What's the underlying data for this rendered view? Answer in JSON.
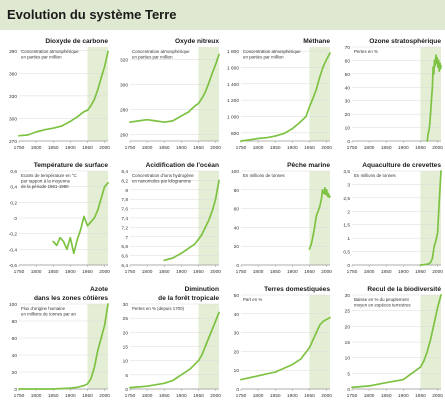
{
  "title": "Evolution du système Terre",
  "style": {
    "line_color": "#7dc242",
    "shade_color": "#e4eed5",
    "grid_color": "#d9d9d9",
    "axis_color": "#9a9a9a",
    "title_bar_color": "#dfe8d0"
  },
  "chart_data": [
    {
      "type": "line",
      "title": "Dioxyde de carbone",
      "note": "Concentration atmosphérique\nen parties par million",
      "x": [
        1750,
        1775,
        1800,
        1825,
        1850,
        1875,
        1900,
        1920,
        1940,
        1950,
        1960,
        1970,
        1980,
        1990,
        2000,
        2010
      ],
      "values": [
        277,
        278,
        282,
        285,
        287,
        290,
        296,
        302,
        309,
        311,
        317,
        325,
        338,
        354,
        369,
        389
      ],
      "xlim": [
        1750,
        2010
      ],
      "ylim": [
        270,
        395
      ],
      "yticks": [
        270,
        300,
        330,
        360,
        390
      ],
      "yticklabels": [
        "270",
        "300",
        "330",
        "360",
        "390"
      ],
      "xticks": [
        1750,
        1800,
        1850,
        1900,
        1950,
        2000
      ],
      "xticklabels": [
        "1750",
        "1800",
        "1850",
        "1900",
        "1950",
        "2000"
      ],
      "shade_from": 1950
    },
    {
      "type": "line",
      "title": "Oxyde nitreux",
      "note": "Concentration atmosphérique\nen parties par million",
      "x": [
        1750,
        1775,
        1800,
        1825,
        1850,
        1875,
        1900,
        1920,
        1940,
        1950,
        1960,
        1970,
        1980,
        1990,
        2000,
        2010
      ],
      "values": [
        270,
        271,
        272,
        271,
        270,
        271,
        275,
        278,
        283,
        285,
        289,
        294,
        301,
        309,
        316,
        324
      ],
      "xlim": [
        1750,
        2010
      ],
      "ylim": [
        255,
        330
      ],
      "yticks": [
        260,
        280,
        300,
        320
      ],
      "yticklabels": [
        "260",
        "280",
        "300",
        "320"
      ],
      "xticks": [
        1750,
        1800,
        1850,
        1900,
        1950,
        2000
      ],
      "xticklabels": [
        "1750",
        "1800",
        "1850",
        "1900",
        "1950",
        "2000"
      ],
      "shade_from": 1950
    },
    {
      "type": "line",
      "title": "Méthane",
      "note": "Concentration atmosphérique\nen parties par million",
      "x": [
        1750,
        1775,
        1800,
        1825,
        1850,
        1875,
        1900,
        1920,
        1940,
        1950,
        1960,
        1970,
        1980,
        1990,
        2000,
        2010
      ],
      "values": [
        700,
        715,
        730,
        740,
        760,
        790,
        850,
        920,
        1000,
        1120,
        1220,
        1330,
        1480,
        1610,
        1700,
        1775
      ],
      "xlim": [
        1750,
        2010
      ],
      "ylim": [
        700,
        1850
      ],
      "yticks": [
        800,
        1000,
        1200,
        1400,
        1600,
        1800
      ],
      "yticklabels": [
        "800",
        "1 000",
        "1 200",
        "1 400",
        "1 600",
        "1 800"
      ],
      "xticks": [
        1750,
        1800,
        1850,
        1900,
        1950,
        2000
      ],
      "xticklabels": [
        "1750",
        "1800",
        "1850",
        "1900",
        "1950",
        "2000"
      ],
      "shade_from": 1950
    },
    {
      "type": "line",
      "title": "Ozone stratosphérique",
      "note": "Pertes en %",
      "x": [
        1970,
        1972,
        1975,
        1977,
        1980,
        1982,
        1985,
        1987,
        1989,
        1991,
        1993,
        1995,
        1997,
        1999,
        2001,
        2003,
        2005,
        2007,
        2009,
        2010
      ],
      "values": [
        0,
        5,
        8,
        12,
        22,
        30,
        40,
        55,
        50,
        60,
        56,
        64,
        58,
        62,
        55,
        60,
        52,
        58,
        54,
        56
      ],
      "xlim": [
        1750,
        2010
      ],
      "ylim": [
        0,
        70
      ],
      "yticks": [
        0,
        10,
        20,
        30,
        40,
        50,
        60,
        70
      ],
      "yticklabels": [
        "0",
        "10",
        "20",
        "30",
        "40",
        "50",
        "60",
        "70"
      ],
      "xticks": [
        1750,
        1800,
        1850,
        1900,
        1950,
        2000
      ],
      "xticklabels": [
        "1750",
        "1800",
        "1850",
        "1900",
        "1950",
        "2000"
      ],
      "shade_from": 1950
    },
    {
      "type": "line",
      "title": "Température de surface",
      "note": "Ecarts de température en °C\npar rapport à la moyenne\nde la période 1961-1990",
      "x": [
        1850,
        1860,
        1870,
        1880,
        1890,
        1900,
        1910,
        1920,
        1930,
        1940,
        1950,
        1960,
        1970,
        1980,
        1990,
        2000,
        2010
      ],
      "values": [
        -0.3,
        -0.35,
        -0.25,
        -0.3,
        -0.4,
        -0.25,
        -0.45,
        -0.28,
        -0.15,
        0.02,
        -0.1,
        -0.05,
        0,
        0.1,
        0.25,
        0.4,
        0.45
      ],
      "xlim": [
        1750,
        2010
      ],
      "ylim": [
        -0.6,
        0.6
      ],
      "yticks": [
        -0.6,
        -0.4,
        -0.2,
        0,
        0.2,
        0.4,
        0.6
      ],
      "yticklabels": [
        "-0,6",
        "-0,4",
        "-0,2",
        "0",
        "0,2",
        "0,4",
        "0,6"
      ],
      "xticks": [
        1750,
        1800,
        1850,
        1900,
        1950,
        2000
      ],
      "xticklabels": [
        "1750",
        "1800",
        "1850",
        "1900",
        "1950",
        "2000"
      ],
      "shade_from": 1950
    },
    {
      "type": "line",
      "title": "Acidification de l'océan",
      "note": "Concentration d'ions hydrogène\nen nanomoles par kilogramme",
      "x": [
        1850,
        1875,
        1900,
        1920,
        1940,
        1950,
        1960,
        1970,
        1980,
        1990,
        2000,
        2010
      ],
      "values": [
        6.5,
        6.55,
        6.65,
        6.75,
        6.85,
        6.95,
        7.05,
        7.2,
        7.35,
        7.55,
        7.8,
        8.2
      ],
      "xlim": [
        1750,
        2010
      ],
      "ylim": [
        6.4,
        8.4
      ],
      "yticks": [
        6.4,
        6.6,
        6.8,
        7,
        7.2,
        7.4,
        7.6,
        7.8,
        8,
        8.2,
        8.4
      ],
      "yticklabels": [
        "6,4",
        "6,6",
        "6,8",
        "7",
        "7,2",
        "7,4",
        "7,6",
        "7,8",
        "8",
        "8,2",
        "8,4"
      ],
      "xticks": [
        1750,
        1800,
        1850,
        1900,
        1950,
        2000
      ],
      "xticklabels": [
        "1750",
        "1800",
        "1850",
        "1900",
        "1950",
        "2000"
      ],
      "shade_from": 1950
    },
    {
      "type": "line",
      "title": "Pêche marine",
      "note": "En millions de tonnes",
      "x": [
        1950,
        1955,
        1960,
        1965,
        1970,
        1975,
        1980,
        1985,
        1988,
        1990,
        1993,
        1995,
        1998,
        2000,
        2003,
        2005,
        2008,
        2010
      ],
      "values": [
        17,
        22,
        30,
        40,
        52,
        57,
        62,
        70,
        80,
        77,
        76,
        82,
        75,
        80,
        73,
        76,
        72,
        73
      ],
      "xlim": [
        1750,
        2010
      ],
      "ylim": [
        0,
        100
      ],
      "yticks": [
        0,
        20,
        40,
        60,
        80,
        100
      ],
      "yticklabels": [
        "0",
        "20",
        "40",
        "60",
        "80",
        "100"
      ],
      "xticks": [
        1750,
        1800,
        1850,
        1900,
        1950,
        2000
      ],
      "xticklabels": [
        "1750",
        "1800",
        "1850",
        "1900",
        "1950",
        "2000"
      ],
      "shade_from": 1950
    },
    {
      "type": "line",
      "title": "Aquaculture de crevettes",
      "note": "En millions de tonnes",
      "x": [
        1950,
        1960,
        1970,
        1975,
        1980,
        1985,
        1990,
        1995,
        2000,
        2005,
        2010
      ],
      "values": [
        0,
        0.01,
        0.03,
        0.05,
        0.1,
        0.25,
        0.7,
        0.9,
        1.2,
        2.4,
        3.5
      ],
      "xlim": [
        1750,
        2010
      ],
      "ylim": [
        0,
        3.5
      ],
      "yticks": [
        0,
        0.5,
        1,
        1.5,
        2,
        2.5,
        3,
        3.5
      ],
      "yticklabels": [
        "0",
        "0,5",
        "1",
        "1,5",
        "2",
        "2,5",
        "3",
        "3,5"
      ],
      "xticks": [
        1750,
        1800,
        1850,
        1900,
        1950,
        2000
      ],
      "xticklabels": [
        "1750",
        "1800",
        "1850",
        "1900",
        "1950",
        "2000"
      ],
      "shade_from": 1950
    },
    {
      "type": "line",
      "title": "Azote\ndans les zones côtières",
      "note": "Flux d'origine humaine\nen millions de tonnes par an",
      "x": [
        1750,
        1800,
        1850,
        1900,
        1920,
        1940,
        1950,
        1960,
        1970,
        1980,
        1990,
        2000,
        2010
      ],
      "values": [
        0,
        0,
        0,
        1,
        2,
        4,
        6,
        12,
        25,
        45,
        60,
        75,
        100
      ],
      "xlim": [
        1750,
        2010
      ],
      "ylim": [
        0,
        100
      ],
      "yticks": [
        0,
        20,
        40,
        60,
        80,
        100
      ],
      "yticklabels": [
        "0",
        "20",
        "40",
        "60",
        "80",
        "100"
      ],
      "xticks": [
        1750,
        1800,
        1850,
        1900,
        1950,
        2000
      ],
      "xticklabels": [
        "1750",
        "1800",
        "1850",
        "1900",
        "1950",
        "2000"
      ],
      "shade_from": 1950
    },
    {
      "type": "line",
      "title": "Diminution\nde la forêt tropicale",
      "note": "Pertes en % (depuis 1700)",
      "x": [
        1750,
        1800,
        1850,
        1875,
        1900,
        1925,
        1950,
        1960,
        1970,
        1980,
        1990,
        2000,
        2010
      ],
      "values": [
        0.5,
        1,
        2,
        3,
        5,
        7,
        10,
        12,
        15,
        18,
        21,
        24,
        27
      ],
      "xlim": [
        1750,
        2010
      ],
      "ylim": [
        0,
        30
      ],
      "yticks": [
        0,
        5,
        10,
        15,
        20,
        25,
        30
      ],
      "yticklabels": [
        "0",
        "5",
        "10",
        "15",
        "20",
        "25",
        "30"
      ],
      "xticks": [
        1750,
        1800,
        1850,
        1900,
        1950,
        2000
      ],
      "xticklabels": [
        "1750",
        "1800",
        "1850",
        "1900",
        "1950",
        "2000"
      ],
      "shade_from": 1950
    },
    {
      "type": "line",
      "title": "Terres domestiquées",
      "note": "Part en %",
      "x": [
        1750,
        1800,
        1850,
        1900,
        1925,
        1950,
        1960,
        1970,
        1980,
        1990,
        2000,
        2010
      ],
      "values": [
        5,
        7,
        9,
        13,
        16,
        22,
        26,
        30,
        34,
        36,
        37,
        38
      ],
      "xlim": [
        1750,
        2010
      ],
      "ylim": [
        0,
        50
      ],
      "yticks": [
        0,
        10,
        20,
        30,
        40,
        50
      ],
      "yticklabels": [
        "0",
        "10",
        "20",
        "30",
        "40",
        "50"
      ],
      "xticks": [
        1750,
        1800,
        1850,
        1900,
        1950,
        2000
      ],
      "xticklabels": [
        "1750",
        "1800",
        "1850",
        "1900",
        "1950",
        "2000"
      ],
      "shade_from": 1950
    },
    {
      "type": "line",
      "title": "Recul de la biodiversité",
      "note": "Baisse en % du peuplement\nmoyen en espèces terrestres",
      "x": [
        1750,
        1800,
        1850,
        1900,
        1925,
        1950,
        1960,
        1970,
        1980,
        1990,
        2000,
        2010
      ],
      "values": [
        0.5,
        1,
        2,
        3,
        5,
        7,
        9,
        12,
        16,
        21,
        26,
        30
      ],
      "xlim": [
        1750,
        2010
      ],
      "ylim": [
        0,
        30
      ],
      "yticks": [
        0,
        5,
        10,
        15,
        20,
        25,
        30
      ],
      "yticklabels": [
        "0",
        "5",
        "10",
        "15",
        "20",
        "25",
        "30"
      ],
      "xticks": [
        1750,
        1800,
        1850,
        1900,
        1950,
        2000
      ],
      "xticklabels": [
        "1750",
        "1800",
        "1850",
        "1900",
        "1950",
        "2000"
      ],
      "shade_from": 1950
    }
  ]
}
